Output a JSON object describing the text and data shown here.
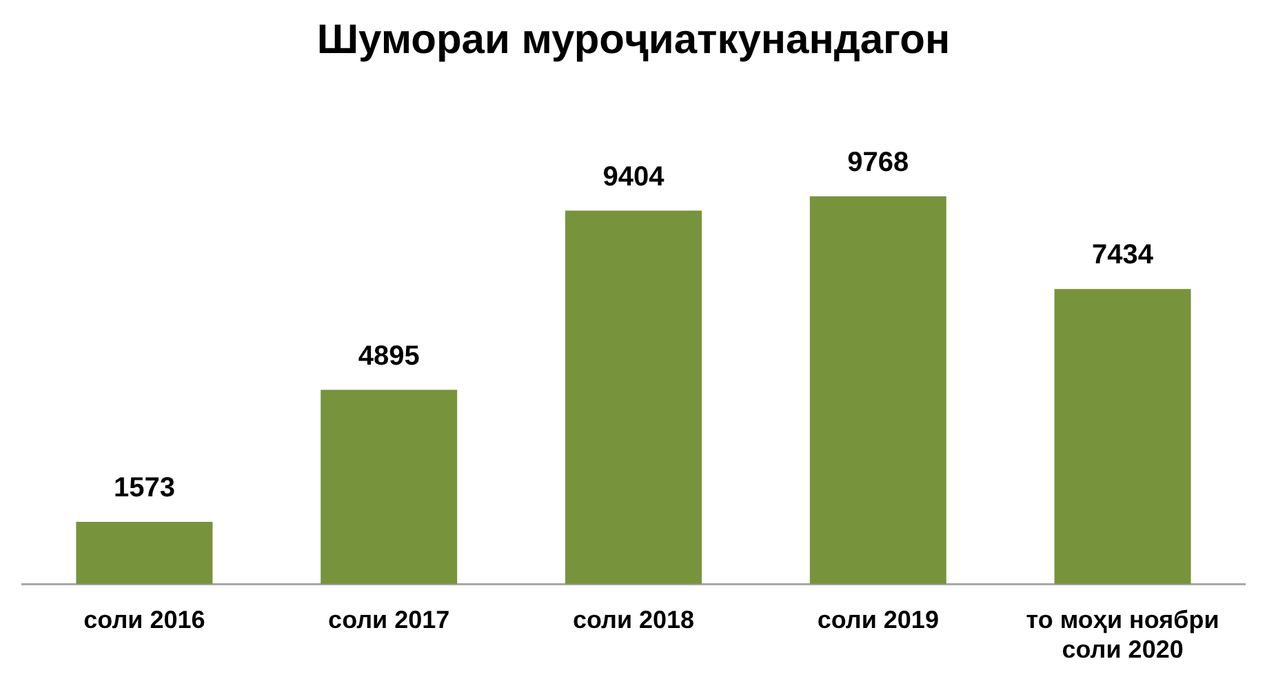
{
  "chart_data": {
    "type": "bar",
    "title": "Шумораи муроҷиаткунандагон",
    "categories": [
      "соли 2016",
      "соли 2017",
      "соли 2018",
      "соли 2019",
      "то моҳи ноябри соли 2020"
    ],
    "values": [
      1573,
      4895,
      9404,
      9768,
      7434
    ],
    "color": "#77933c",
    "data_labels": true,
    "tick_labels": "x"
  }
}
